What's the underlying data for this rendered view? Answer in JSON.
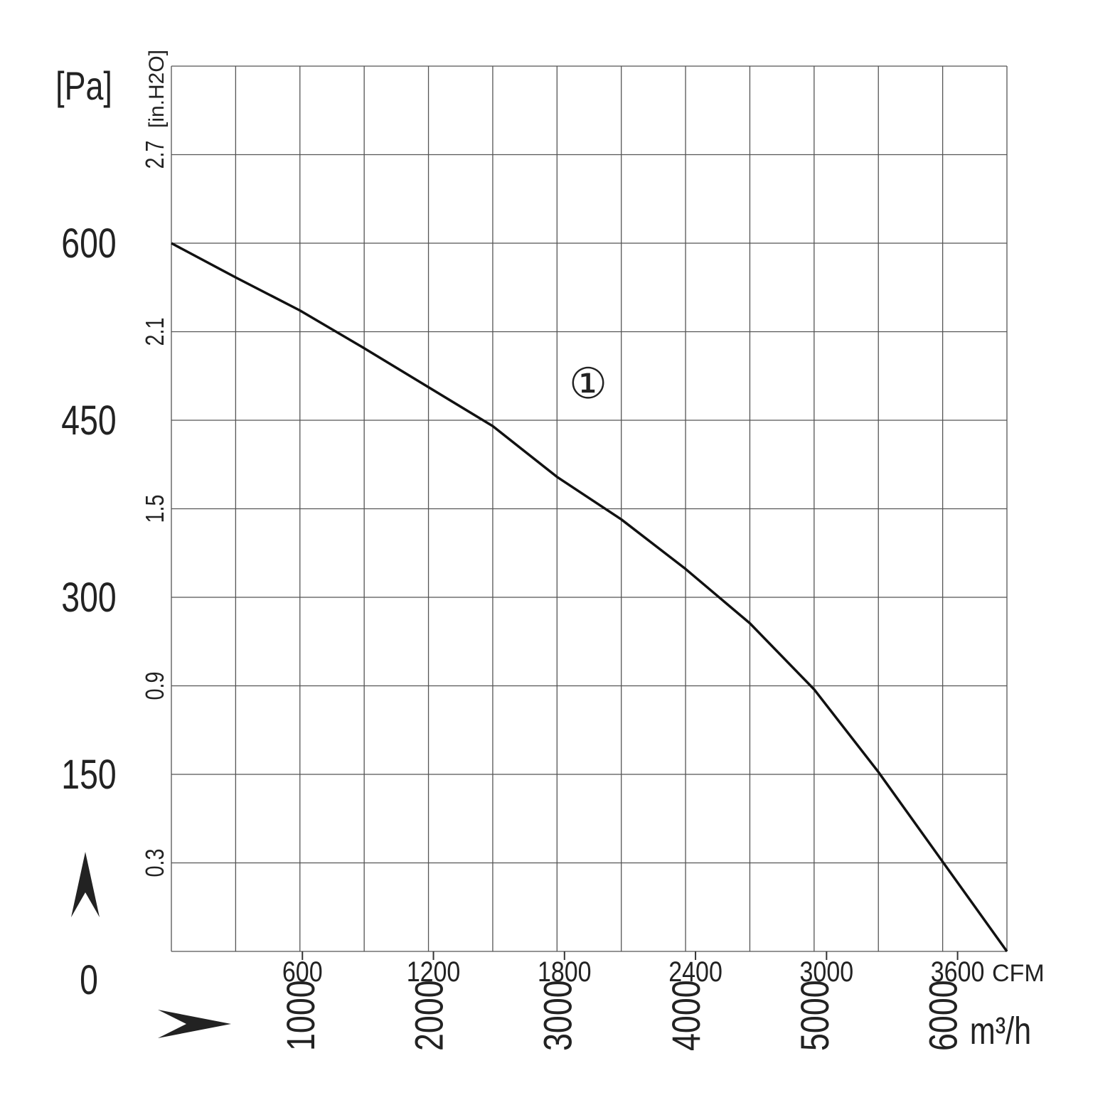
{
  "chart_data": {
    "type": "line",
    "y_unit": "[Pa]",
    "y2_unit": "[in.H2O]",
    "x_unit": "m³/h",
    "x2_unit": "CFM",
    "annotation": "①",
    "x": [
      0,
      500,
      1000,
      1500,
      2000,
      2500,
      3000,
      3500,
      4000,
      4500,
      5000,
      5500,
      6000,
      6500
    ],
    "series": [
      {
        "color": "#111111",
        "values": [
          600,
          571,
          543,
          511,
          478,
          445,
          402,
          366,
          324,
          278,
          222,
          152,
          76,
          0
        ]
      }
    ],
    "xlim": [
      0,
      6500
    ],
    "xticks": [
      1000,
      2000,
      3000,
      4000,
      5000,
      6000
    ],
    "x2lim": [
      0,
      3826
    ],
    "x2ticks": [
      600,
      1200,
      1800,
      2400,
      3000,
      3600
    ],
    "ylim": [
      0,
      750
    ],
    "yticks": [
      0,
      150,
      300,
      450,
      600
    ],
    "y2lim": [
      0,
      3.0
    ],
    "y2ticks": [
      0.3,
      0.9,
      1.5,
      2.1,
      2.7
    ],
    "grid": true,
    "grid_columns": 13,
    "grid_rows": 10
  }
}
